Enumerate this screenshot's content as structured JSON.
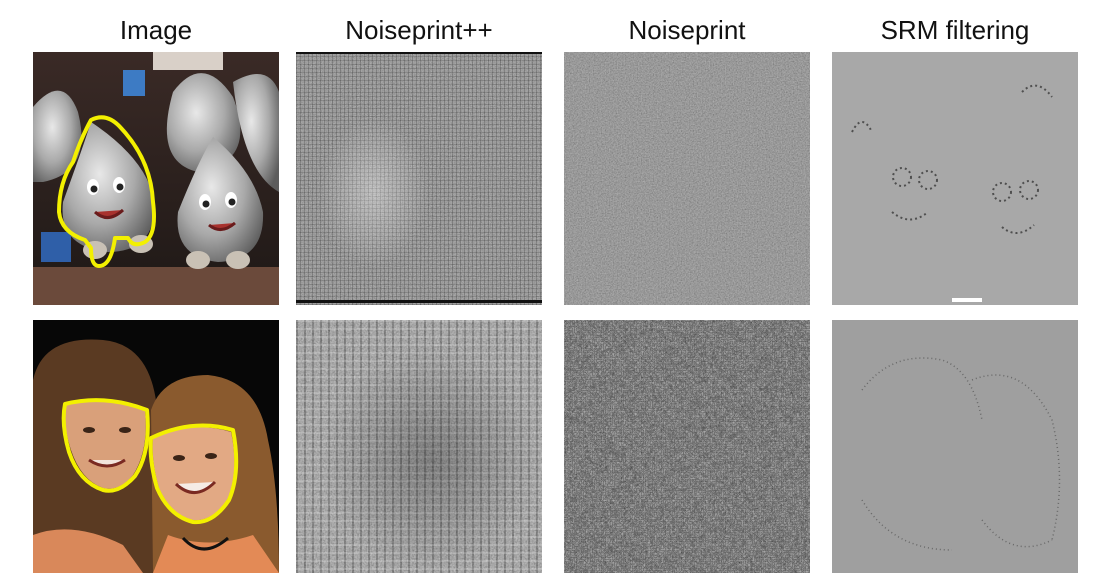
{
  "columns": [
    {
      "title": "Image"
    },
    {
      "title": "Noiseprint++"
    },
    {
      "title": "Noiseprint"
    },
    {
      "title": "SRM filtering"
    }
  ],
  "rows": [
    {
      "scene": "foil-candy-mascot-plush-toys-on-shelf",
      "highlight_color": "#f3f000"
    },
    {
      "scene": "girl-and-woman-selfie-faces",
      "highlight_color": "#f3f000"
    }
  ],
  "colors": {
    "background": "#ffffff",
    "outline": "#f3f000",
    "srm_gray": "#8a8a8a"
  }
}
